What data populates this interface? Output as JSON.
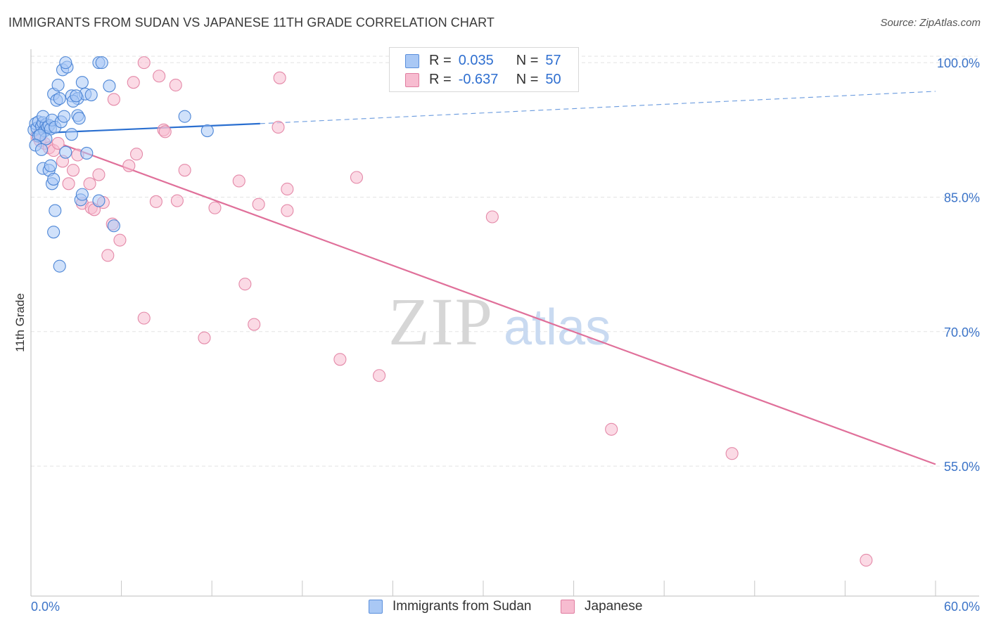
{
  "header": {
    "title": "IMMIGRANTS FROM SUDAN VS JAPANESE 11TH GRADE CORRELATION CHART",
    "source": "Source: ZipAtlas.com"
  },
  "watermark": {
    "zip": "ZIP",
    "atlas": "atlas"
  },
  "legend": {
    "r_label": "R =",
    "n_label": "N =",
    "rows": [
      {
        "r": "0.035",
        "n": "57",
        "fill": "#a9c8f5",
        "stroke": "#5a8fdc"
      },
      {
        "r": "-0.637",
        "n": "50",
        "fill": "#f7bcd0",
        "stroke": "#e07da0"
      }
    ]
  },
  "bottom_legend": [
    "Immigrants from Sudan",
    "Japanese"
  ],
  "colors": {
    "blue_fill": "#a9c8f5",
    "blue_stroke": "#4d86d6",
    "blue_line": "#2a6fd0",
    "pink_fill": "#f7bcd0",
    "pink_stroke": "#e489a8",
    "pink_line": "#e0709a",
    "axis_text": "#3c74c8",
    "grid": "#e3e3e3"
  },
  "chart_data": {
    "type": "scatter",
    "title": "IMMIGRANTS FROM SUDAN VS JAPANESE 11TH GRADE CORRELATION CHART",
    "xlabel": "",
    "ylabel": "11th Grade",
    "xlim": [
      0,
      60
    ],
    "ylim": [
      40.5,
      101.5
    ],
    "x_tick_labels": [
      "0.0%",
      "60.0%"
    ],
    "y_ticks": [
      55,
      70,
      85,
      100
    ],
    "y_tick_labels": [
      "55.0%",
      "70.0%",
      "85.0%",
      "100.0%"
    ],
    "grid": true,
    "legend_position": "top-center",
    "series": [
      {
        "name": "Immigrants from Sudan",
        "r": 0.035,
        "n": 57,
        "points": [
          [
            0.2,
            92.5
          ],
          [
            0.3,
            93.2
          ],
          [
            0.4,
            92.7
          ],
          [
            0.5,
            93.4
          ],
          [
            0.5,
            91.8
          ],
          [
            0.7,
            92.9
          ],
          [
            0.8,
            93.3
          ],
          [
            0.9,
            92.4
          ],
          [
            1.0,
            93.1
          ],
          [
            1.1,
            92.8
          ],
          [
            1.2,
            93.0
          ],
          [
            1.3,
            92.6
          ],
          [
            1.0,
            91.5
          ],
          [
            0.6,
            91.9
          ],
          [
            0.8,
            94.0
          ],
          [
            1.4,
            93.6
          ],
          [
            1.6,
            92.8
          ],
          [
            2.0,
            93.4
          ],
          [
            0.3,
            90.8
          ],
          [
            0.7,
            90.3
          ],
          [
            1.5,
            96.5
          ],
          [
            1.7,
            95.8
          ],
          [
            1.9,
            96.0
          ],
          [
            2.1,
            99.2
          ],
          [
            2.4,
            99.5
          ],
          [
            2.3,
            100.0
          ],
          [
            1.8,
            97.5
          ],
          [
            2.7,
            96.3
          ],
          [
            3.1,
            96.0
          ],
          [
            3.1,
            94.1
          ],
          [
            2.8,
            95.7
          ],
          [
            3.4,
            97.8
          ],
          [
            3.6,
            96.5
          ],
          [
            4.0,
            96.4
          ],
          [
            4.5,
            100.0
          ],
          [
            4.7,
            100.0
          ],
          [
            5.2,
            97.4
          ],
          [
            3.2,
            93.8
          ],
          [
            3.0,
            96.3
          ],
          [
            2.2,
            94.0
          ],
          [
            0.8,
            88.2
          ],
          [
            1.2,
            88.0
          ],
          [
            1.3,
            88.5
          ],
          [
            1.4,
            86.5
          ],
          [
            1.5,
            87.0
          ],
          [
            2.3,
            90.0
          ],
          [
            3.7,
            89.9
          ],
          [
            3.3,
            84.7
          ],
          [
            4.5,
            84.6
          ],
          [
            1.6,
            83.5
          ],
          [
            1.5,
            81.1
          ],
          [
            1.9,
            77.3
          ],
          [
            5.5,
            81.8
          ],
          [
            10.2,
            94.0
          ],
          [
            11.7,
            92.4
          ],
          [
            3.4,
            85.3
          ],
          [
            2.7,
            92.0
          ]
        ]
      },
      {
        "name": "Japanese",
        "r": -0.637,
        "n": 50,
        "points": [
          [
            0.4,
            91.8
          ],
          [
            0.6,
            91.3
          ],
          [
            0.9,
            91.0
          ],
          [
            1.2,
            90.5
          ],
          [
            1.5,
            90.2
          ],
          [
            1.8,
            91.0
          ],
          [
            2.1,
            89.0
          ],
          [
            2.5,
            86.5
          ],
          [
            2.8,
            88.0
          ],
          [
            3.1,
            89.7
          ],
          [
            3.4,
            84.3
          ],
          [
            3.9,
            86.5
          ],
          [
            4.0,
            83.8
          ],
          [
            4.2,
            83.6
          ],
          [
            4.5,
            87.5
          ],
          [
            4.8,
            84.4
          ],
          [
            5.1,
            78.5
          ],
          [
            5.4,
            82.0
          ],
          [
            5.9,
            80.2
          ],
          [
            6.5,
            88.5
          ],
          [
            7.0,
            89.8
          ],
          [
            7.5,
            71.5
          ],
          [
            8.3,
            84.5
          ],
          [
            8.8,
            92.5
          ],
          [
            9.7,
            84.6
          ],
          [
            10.2,
            88.0
          ],
          [
            11.5,
            69.3
          ],
          [
            12.2,
            83.8
          ],
          [
            13.8,
            86.8
          ],
          [
            14.2,
            75.3
          ],
          [
            14.8,
            70.8
          ],
          [
            15.1,
            84.2
          ],
          [
            16.4,
            92.8
          ],
          [
            17.0,
            85.9
          ],
          [
            17.0,
            83.5
          ],
          [
            20.5,
            66.9
          ],
          [
            21.6,
            87.2
          ],
          [
            23.1,
            65.1
          ],
          [
            30.6,
            82.8
          ],
          [
            38.5,
            59.1
          ],
          [
            46.5,
            56.4
          ],
          [
            55.4,
            44.5
          ],
          [
            7.5,
            100.0
          ],
          [
            8.5,
            98.5
          ],
          [
            9.6,
            97.5
          ],
          [
            5.5,
            95.9
          ],
          [
            6.8,
            97.8
          ],
          [
            16.5,
            98.3
          ],
          [
            35.8,
            100.0
          ],
          [
            8.9,
            92.3
          ]
        ]
      }
    ],
    "trendlines": [
      {
        "series": "Immigrants from Sudan",
        "x": [
          0,
          15.2
        ],
        "y": [
          92.1,
          93.2
        ],
        "dashed_extension": {
          "x": [
            15.2,
            60
          ],
          "y": [
            93.2,
            96.8
          ]
        }
      },
      {
        "series": "Japanese",
        "x": [
          2.2,
          60
        ],
        "y": [
          90.8,
          55.2
        ]
      }
    ]
  }
}
